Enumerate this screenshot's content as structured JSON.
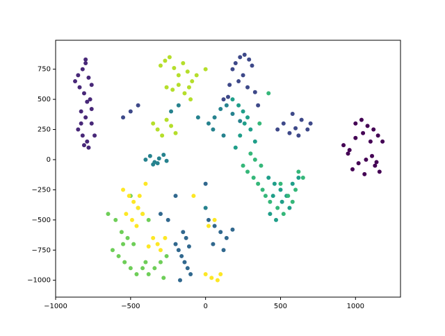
{
  "chart_data": {
    "type": "scatter",
    "xlim": [
      -1000,
      1300
    ],
    "ylim": [
      -1140,
      990
    ],
    "xticks": [
      {
        "value": -1000,
        "label": "−1000"
      },
      {
        "value": -500,
        "label": "−500"
      },
      0,
      500,
      1000
    ],
    "yticks": [
      {
        "value": -1000,
        "label": "−1000"
      },
      {
        "value": -750,
        "label": "−750"
      },
      {
        "value": -500,
        "label": "−500"
      },
      {
        "value": -250,
        "label": "−250"
      },
      0,
      250,
      500,
      750
    ],
    "series": [
      {
        "color": "#440154",
        "x": [
          920,
          960,
          1000,
          1040,
          1080,
          1120,
          1150,
          1180,
          1000,
          1050,
          1100,
          950,
          1020,
          1070,
          1130,
          1160,
          980,
          1060,
          1110,
          1140
        ],
        "values": [
          120,
          80,
          300,
          330,
          280,
          250,
          200,
          150,
          180,
          220,
          150,
          50,
          -30,
          0,
          -50,
          -100,
          -80,
          -120,
          30,
          -20
        ]
      },
      {
        "color": "#482878",
        "x": [
          -850,
          -820,
          -800,
          -780,
          -760,
          -840,
          -810,
          -790,
          -770,
          -830,
          -800,
          -760,
          -850,
          -820,
          -790,
          -780,
          -810,
          -830,
          -760,
          -740,
          -870,
          -800
        ],
        "values": [
          700,
          750,
          800,
          680,
          620,
          600,
          550,
          480,
          500,
          400,
          350,
          300,
          250,
          200,
          150,
          100,
          120,
          300,
          420,
          200,
          650,
          830
        ]
      },
      {
        "color": "#3e4989",
        "x": [
          200,
          230,
          260,
          290,
          310,
          250,
          180,
          220,
          280,
          330,
          350,
          150,
          480,
          520,
          560,
          600,
          640,
          680,
          700,
          620,
          580,
          -500,
          -550,
          -450,
          120,
          160
        ],
        "values": [
          800,
          850,
          870,
          830,
          780,
          700,
          750,
          650,
          600,
          560,
          450,
          520,
          250,
          300,
          220,
          260,
          330,
          250,
          300,
          200,
          380,
          400,
          350,
          450,
          500,
          620
        ]
      },
      {
        "color": "#31688e",
        "x": [
          -200,
          -180,
          -160,
          -140,
          -120,
          -100,
          -170,
          -150,
          -130,
          -110,
          20,
          60,
          100,
          140,
          180,
          50,
          120,
          -250,
          -300,
          -200,
          0
        ],
        "values": [
          -700,
          -750,
          -800,
          -850,
          -900,
          -950,
          -1000,
          -600,
          -650,
          -720,
          -500,
          -550,
          -600,
          -650,
          -580,
          -700,
          -750,
          -500,
          -450,
          -300,
          -200
        ]
      },
      {
        "color": "#26828e",
        "x": [
          -400,
          -370,
          -340,
          -310,
          -280,
          -260,
          -350,
          -320,
          -230,
          -180,
          20,
          60,
          100,
          140,
          180,
          230,
          50,
          120,
          -50,
          0
        ],
        "values": [
          0,
          30,
          -20,
          10,
          40,
          -10,
          -40,
          -30,
          400,
          450,
          300,
          350,
          420,
          450,
          380,
          320,
          250,
          200,
          350,
          -400
        ]
      },
      {
        "color": "#1f9e89",
        "x": [
          200,
          230,
          260,
          280,
          300,
          330,
          250,
          220,
          180,
          420,
          460,
          500,
          540,
          580,
          620,
          450,
          510,
          560,
          430,
          470
        ],
        "values": [
          100,
          200,
          300,
          350,
          250,
          150,
          400,
          450,
          500,
          -150,
          -200,
          -250,
          -300,
          -200,
          -150,
          -300,
          -350,
          -400,
          -450,
          -500
        ]
      },
      {
        "color": "#35b779",
        "x": [
          250,
          280,
          320,
          350,
          380,
          300,
          330,
          370,
          400,
          430,
          500,
          550,
          600,
          650,
          480,
          520,
          580,
          620,
          360,
          420
        ],
        "values": [
          -50,
          -100,
          -150,
          -200,
          -250,
          50,
          0,
          -50,
          -300,
          -350,
          -200,
          -300,
          -250,
          -150,
          -400,
          -450,
          -350,
          -100,
          300,
          550
        ]
      },
      {
        "color": "#6ece58",
        "x": [
          -650,
          -600,
          -560,
          -520,
          -480,
          -620,
          -580,
          -540,
          -500,
          -460,
          -420,
          -400,
          -380,
          -340,
          -300,
          -450,
          -420,
          -380,
          -260,
          -500,
          -280,
          -550
        ],
        "values": [
          -450,
          -500,
          -600,
          -650,
          -700,
          -750,
          -800,
          -850,
          -900,
          -950,
          -900,
          -850,
          -950,
          -900,
          -850,
          -400,
          -450,
          -500,
          -800,
          -300,
          -980,
          -700
        ]
      },
      {
        "color": "#b5de2b",
        "x": [
          -300,
          -270,
          -240,
          -210,
          -180,
          -150,
          -120,
          -90,
          -60,
          -260,
          -220,
          -180,
          -140,
          -110,
          -350,
          -320,
          -290,
          -260,
          -230,
          -200,
          -100,
          0
        ],
        "values": [
          780,
          820,
          850,
          760,
          700,
          800,
          730,
          650,
          700,
          600,
          580,
          620,
          550,
          600,
          300,
          250,
          200,
          330,
          280,
          220,
          500,
          750
        ]
      },
      {
        "color": "#fde725",
        "x": [
          -550,
          -510,
          -480,
          -450,
          -420,
          -400,
          -530,
          -490,
          -460,
          -440,
          -350,
          -320,
          -300,
          -270,
          -380,
          0,
          40,
          80,
          20,
          100,
          -80,
          60
        ],
        "values": [
          -250,
          -300,
          -350,
          -400,
          -450,
          -200,
          -450,
          -500,
          -550,
          -300,
          -650,
          -700,
          -750,
          -650,
          -720,
          -950,
          -980,
          -1000,
          -550,
          -950,
          -300,
          -500
        ]
      }
    ]
  }
}
